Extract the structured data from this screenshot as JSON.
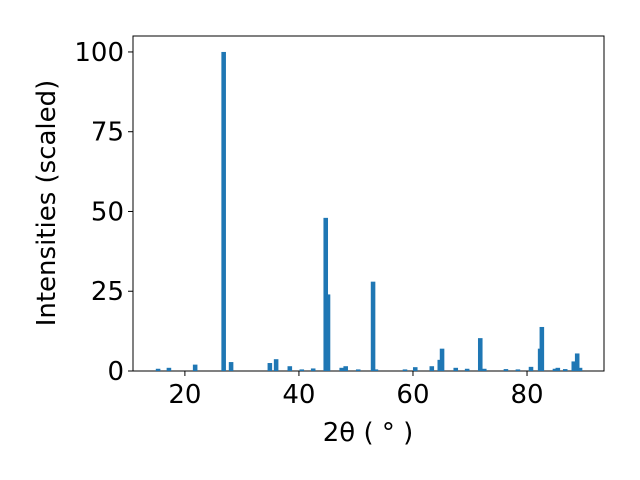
{
  "chart_data": {
    "type": "bar",
    "xlabel": "2θ ( ° )",
    "ylabel": "Intensities (scaled)",
    "color": "#1f77b4",
    "x": [
      15.3,
      17.2,
      21.8,
      26.8,
      28.1,
      34.9,
      36.0,
      38.4,
      40.5,
      42.5,
      44.7,
      45.1,
      47.5,
      48.2,
      50.4,
      53.0,
      53.5,
      58.6,
      60.4,
      63.3,
      64.7,
      65.1,
      67.5,
      69.5,
      71.8,
      72.5,
      76.3,
      78.4,
      80.7,
      82.3,
      82.6,
      84.9,
      85.4,
      86.7,
      88.2,
      88.8,
      89.3
    ],
    "values": [
      0.7,
      1.0,
      2.0,
      100,
      2.8,
      2.5,
      3.7,
      1.5,
      0.5,
      0.8,
      48,
      24,
      1.0,
      1.5,
      0.5,
      28,
      0.5,
      0.5,
      1.2,
      1.5,
      3.5,
      7,
      1.0,
      0.7,
      10.3,
      0.7,
      0.6,
      0.5,
      1.3,
      7,
      13.8,
      0.7,
      1.0,
      0.6,
      3,
      5.5,
      1.0
    ],
    "xlim": [
      10.9,
      93.5
    ],
    "ylim": [
      0,
      105
    ],
    "xticks": [
      20,
      40,
      60,
      80
    ],
    "yticks": [
      0,
      25,
      50,
      75,
      100
    ]
  }
}
